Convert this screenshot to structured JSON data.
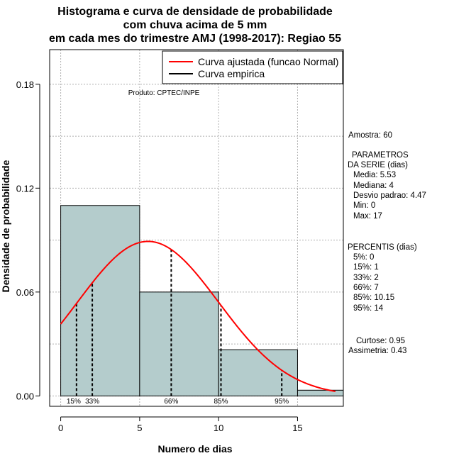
{
  "chart_data": {
    "type": "histogram",
    "title": [
      "Histograma e curva de densidade de probabilidade",
      "com chuva acima de 5 mm",
      "em cada mes do trimestre AMJ (1998-2017): Regiao 55"
    ],
    "xlabel": "Numero de dias",
    "ylabel": "Densidade de probabilidade",
    "xlim": [
      -0.7,
      17.9
    ],
    "ylim": [
      -0.006,
      0.2
    ],
    "xticks": [
      0,
      5,
      10,
      15
    ],
    "yticks": [
      0.0,
      0.06,
      0.12,
      0.18
    ],
    "ytick_labels": [
      "0.00",
      "0.06",
      "0.12",
      "0.18"
    ],
    "bins": [
      {
        "start": 0,
        "end": 5,
        "density": 0.11
      },
      {
        "start": 5,
        "end": 10,
        "density": 0.06
      },
      {
        "start": 10,
        "end": 15,
        "density": 0.0267
      },
      {
        "start": 15,
        "end": 20,
        "density": 0.0033
      }
    ],
    "normal_curve": {
      "mean": 5.53,
      "sd": 4.47
    },
    "percentile_lines": [
      {
        "label": "15%",
        "x": 1
      },
      {
        "label": "33%",
        "x": 2
      },
      {
        "label": "66%",
        "x": 7
      },
      {
        "label": "85%",
        "x": 10.15
      },
      {
        "label": "95%",
        "x": 14
      }
    ],
    "legend": [
      {
        "label": "Curva ajustada (funcao Normal)",
        "color": "#ff0000"
      },
      {
        "label": "Curva empirica",
        "color": "#000000"
      }
    ],
    "legend_position": "top-right",
    "annotation": "Produto: CPTEC/INPE",
    "colors": {
      "bar_fill": "#b4cccc",
      "curve": "#ff0000",
      "grid": "#b0b0b0"
    }
  },
  "stats": {
    "amostra": "Amostra: 60",
    "param_title_1": "PARAMETROS",
    "param_title_2": "DA SERIE (dias)",
    "media": "Media: 5.53",
    "mediana": "Mediana: 4",
    "desvio": "Desvio padrao: 4.47",
    "min": "Min: 0",
    "max": "Max: 17",
    "percentis_title": "PERCENTIS (dias)",
    "p5": "5%: 0",
    "p15": "15%: 1",
    "p33": "33%: 2",
    "p66": "66%: 7",
    "p85": "85%: 10.15",
    "p95": "95%: 14",
    "curtose": "Curtose: 0.95",
    "assimetria": "Assimetria: 0.43"
  }
}
